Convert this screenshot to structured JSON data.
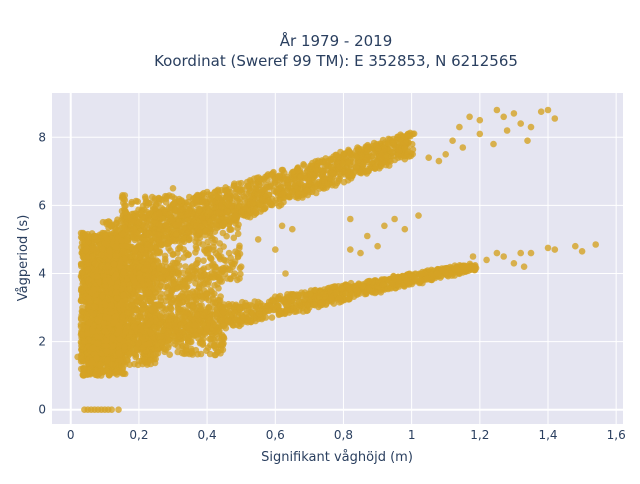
{
  "chart_data": {
    "type": "scatter",
    "title_line1": "År 1979 - 2019",
    "title_line2": "Koordinat (Sweref 99 TM): E 352853, N 6212565",
    "xlabel": "Signifikant våghöjd (m)",
    "ylabel": "Vågperiod (s)",
    "xlim": [
      -0.055,
      1.62
    ],
    "ylim": [
      -0.42,
      9.3
    ],
    "x_ticks": [
      0,
      0.2,
      0.4,
      0.6,
      0.8,
      1,
      1.2,
      1.4,
      1.6
    ],
    "x_tick_labels": [
      "0",
      "0,2",
      "0,4",
      "0,6",
      "0,8",
      "1",
      "1,2",
      "1,4",
      "1,6"
    ],
    "y_ticks": [
      0,
      2,
      4,
      6,
      8
    ],
    "y_tick_labels": [
      "0",
      "2",
      "4",
      "6",
      "8"
    ],
    "grid": true,
    "colors": {
      "marker": "#d4a324",
      "plot_bg": "#e5e5f1",
      "grid": "#ffffff",
      "text": "#2a3f5f"
    },
    "series": [
      {
        "marker_opacity": 0.8,
        "regions": [
          {
            "x": [
              0.03,
              0.16
            ],
            "y": [
              1.0,
              5.2
            ],
            "n": 1400
          },
          {
            "x": [
              0.05,
              0.25
            ],
            "y": [
              1.3,
              4.5
            ],
            "n": 800
          },
          {
            "x": [
              0.1,
              0.45
            ],
            "y": [
              1.6,
              4.2
            ],
            "n": 700
          },
          {
            "x": [
              0.15,
              0.5
            ],
            "y": [
              3.8,
              6.3
            ],
            "n": 500
          }
        ],
        "bands": [
          {
            "x0": 0.1,
            "x1": 1.0,
            "y0": 4.8,
            "y1": 7.8,
            "hw0": 0.7,
            "hw1": 0.35,
            "n": 1300
          },
          {
            "x0": 0.2,
            "x1": 1.18,
            "y0": 2.2,
            "y1": 4.2,
            "hw0": 0.45,
            "hw1": 0.1,
            "n": 1000
          }
        ],
        "points": [
          [
            0.04,
            0
          ],
          [
            0.05,
            0
          ],
          [
            0.06,
            0
          ],
          [
            0.07,
            0
          ],
          [
            0.08,
            0
          ],
          [
            0.09,
            0
          ],
          [
            0.1,
            0
          ],
          [
            0.11,
            0
          ],
          [
            0.12,
            0
          ],
          [
            0.14,
            0
          ],
          [
            0.02,
            1.55
          ],
          [
            0.03,
            1.5
          ],
          [
            0.04,
            1.2
          ],
          [
            1.25,
            8.8
          ],
          [
            1.27,
            8.6
          ],
          [
            1.3,
            8.7
          ],
          [
            1.32,
            8.4
          ],
          [
            1.35,
            8.3
          ],
          [
            1.38,
            8.75
          ],
          [
            1.4,
            8.8
          ],
          [
            1.42,
            8.55
          ],
          [
            1.2,
            8.1
          ],
          [
            1.24,
            7.8
          ],
          [
            1.28,
            8.2
          ],
          [
            1.34,
            7.9
          ],
          [
            1.14,
            8.3
          ],
          [
            1.17,
            8.6
          ],
          [
            1.2,
            8.5
          ],
          [
            1.12,
            7.9
          ],
          [
            1.1,
            7.5
          ],
          [
            1.05,
            7.4
          ],
          [
            1.08,
            7.3
          ],
          [
            1.15,
            7.7
          ],
          [
            0.82,
            5.6
          ],
          [
            0.92,
            5.4
          ],
          [
            0.98,
            5.3
          ],
          [
            1.02,
            5.7
          ],
          [
            0.87,
            5.1
          ],
          [
            0.95,
            5.6
          ],
          [
            0.82,
            4.7
          ],
          [
            0.85,
            4.6
          ],
          [
            0.9,
            4.8
          ],
          [
            0.6,
            4.7
          ],
          [
            0.55,
            5.0
          ],
          [
            0.65,
            5.3
          ],
          [
            0.62,
            5.4
          ],
          [
            0.45,
            4.4
          ],
          [
            0.5,
            4.2
          ],
          [
            0.63,
            4.0
          ],
          [
            1.18,
            4.5
          ],
          [
            1.22,
            4.4
          ],
          [
            1.25,
            4.6
          ],
          [
            1.27,
            4.5
          ],
          [
            1.3,
            4.3
          ],
          [
            1.32,
            4.6
          ],
          [
            1.35,
            4.6
          ],
          [
            1.33,
            4.2
          ],
          [
            1.4,
            4.75
          ],
          [
            1.42,
            4.7
          ],
          [
            1.48,
            4.8
          ],
          [
            1.5,
            4.65
          ],
          [
            1.54,
            4.85
          ],
          [
            0.16,
            5.8
          ],
          [
            0.2,
            5.5
          ],
          [
            0.25,
            6.0
          ],
          [
            0.28,
            6.2
          ],
          [
            0.3,
            6.5
          ],
          [
            0.03,
            3.2
          ],
          [
            0.03,
            2.5
          ],
          [
            0.04,
            3.6
          ],
          [
            0.05,
            4.1
          ],
          [
            0.04,
            2.0
          ]
        ]
      }
    ]
  }
}
